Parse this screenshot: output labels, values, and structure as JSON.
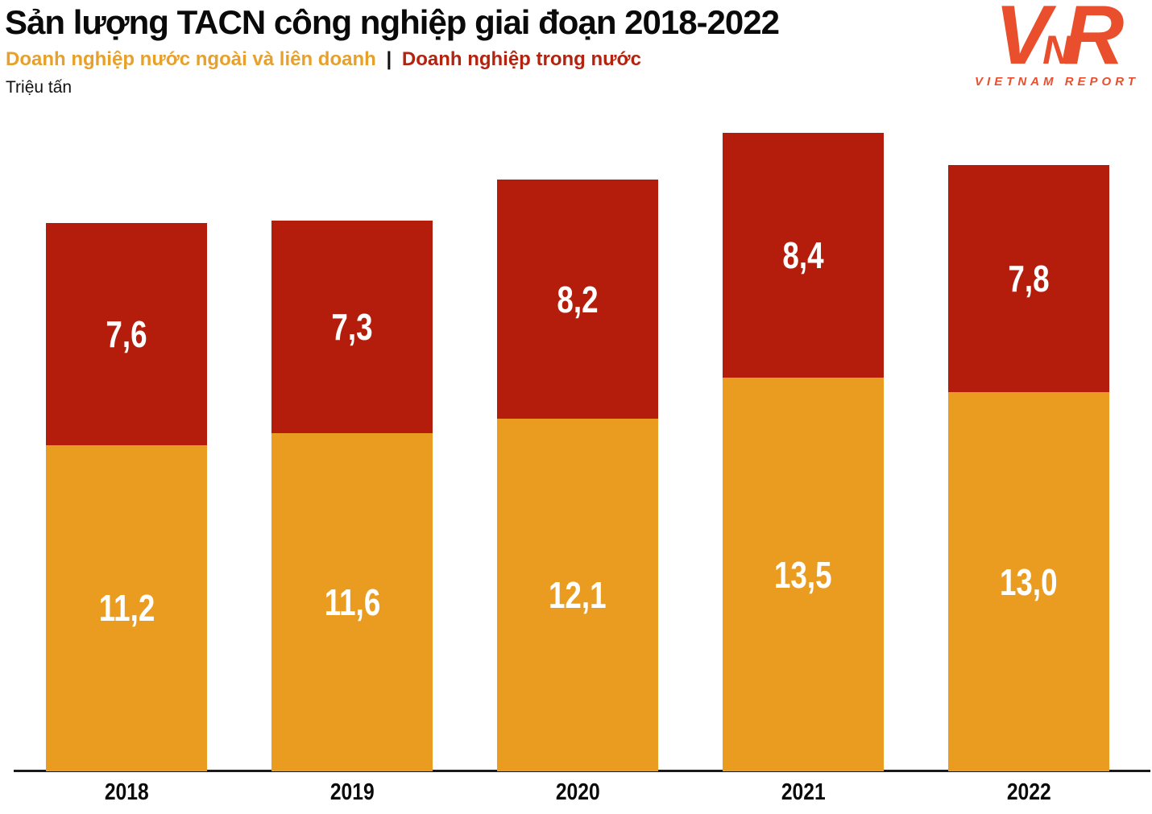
{
  "header": {
    "title": "Sản lượng TACN công nghiệp giai đoạn 2018-2022",
    "unit": "Triệu tấn",
    "legend": {
      "foreign_label": "Doanh nghiệp nước ngoài và liên doanh",
      "separator": "|",
      "domestic_label": "Doanh nghiệp trong nước",
      "foreign_color": "#E8A02C",
      "domestic_color": "#B22310"
    }
  },
  "logo": {
    "letter_v": "V",
    "letter_n": "N",
    "letter_r": "R",
    "wordmark": "VIETNAM REPORT",
    "color": "#E94F2D"
  },
  "chart_data": {
    "type": "bar",
    "stacked": true,
    "title": "Sản lượng TACN công nghiệp giai đoạn 2018-2022",
    "ylabel": "Triệu tấn",
    "xlabel": "",
    "categories": [
      "2018",
      "2019",
      "2020",
      "2021",
      "2022"
    ],
    "series": [
      {
        "name": "Doanh nghiệp nước ngoài và liên doanh",
        "color": "#E99C1F",
        "values": [
          11.2,
          11.6,
          12.1,
          13.5,
          13.0
        ],
        "labels": [
          "11,2",
          "11,6",
          "12,1",
          "13,5",
          "13,0"
        ]
      },
      {
        "name": "Doanh nghiệp trong nước",
        "color": "#B41D0B",
        "values": [
          7.6,
          7.3,
          8.2,
          8.4,
          7.8
        ],
        "labels": [
          "7,6",
          "7,3",
          "8,2",
          "8,4",
          "7,8"
        ]
      }
    ],
    "totals": [
      18.8,
      18.9,
      20.3,
      21.9,
      20.8
    ],
    "value_label_color": "#FFFFFF",
    "axis_color": "#1A1A1A",
    "grid": false,
    "legend_position": "top-left",
    "ylim": [
      0,
      22.5
    ]
  }
}
